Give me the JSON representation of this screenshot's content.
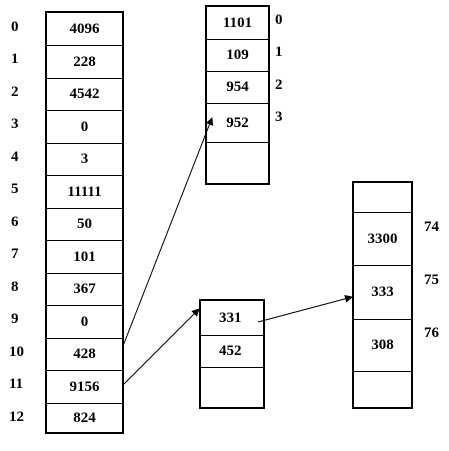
{
  "main_table": {
    "indices": [
      "0",
      "1",
      "2",
      "3",
      "4",
      "5",
      "6",
      "7",
      "8",
      "9",
      "10",
      "11",
      "12"
    ],
    "values": [
      "4096",
      "228",
      "4542",
      "0",
      "3",
      "11111",
      "50",
      "101",
      "367",
      "0",
      "428",
      "9156",
      "824"
    ]
  },
  "table_a": {
    "values": [
      "1101",
      "109",
      "954",
      "952",
      ""
    ],
    "indices": [
      "0",
      "1",
      "2",
      "3"
    ]
  },
  "table_b": {
    "values": [
      "331",
      "452",
      ""
    ]
  },
  "table_c": {
    "values": [
      "",
      "3300",
      "333",
      "308",
      ""
    ],
    "indices": [
      "74",
      "75",
      "76"
    ]
  },
  "colors": {
    "line": "#000000",
    "background": "#ffffff"
  }
}
